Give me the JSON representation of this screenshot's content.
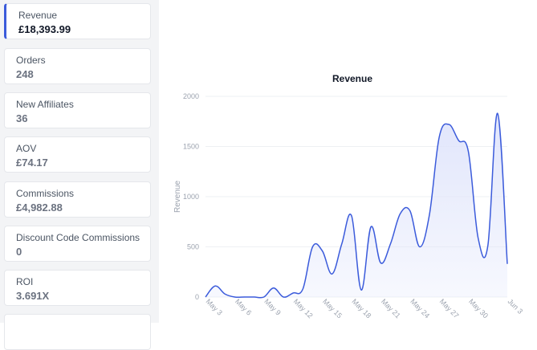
{
  "metrics": [
    {
      "label": "Revenue",
      "value": "£18,393.99",
      "active": true
    },
    {
      "label": "Orders",
      "value": "248",
      "active": false
    },
    {
      "label": "New Affiliates",
      "value": "36",
      "active": false
    },
    {
      "label": "AOV",
      "value": "£74.17",
      "active": false
    },
    {
      "label": "Commissions",
      "value": "£4,982.88",
      "active": false
    },
    {
      "label": "Discount Code Commissions",
      "value": "0",
      "active": false
    },
    {
      "label": "ROI",
      "value": "3.691X",
      "active": false
    }
  ],
  "colors": {
    "line": "#3b5bdb",
    "fill": "#dfe4fb",
    "grid": "#eef0f3",
    "tick": "#9ca3af"
  },
  "chart_data": {
    "type": "area",
    "title": "Revenue",
    "xlabel": "",
    "ylabel": "Revenue",
    "ylim": [
      0,
      2000
    ],
    "yticks": [
      0,
      500,
      1000,
      1500,
      2000
    ],
    "xticks": [
      {
        "label": "May 3",
        "index": 0
      },
      {
        "label": "May 6",
        "index": 3
      },
      {
        "label": "May 9",
        "index": 6
      },
      {
        "label": "May 12",
        "index": 9
      },
      {
        "label": "May 15",
        "index": 12
      },
      {
        "label": "May 18",
        "index": 15
      },
      {
        "label": "May 21",
        "index": 18
      },
      {
        "label": "May 24",
        "index": 21
      },
      {
        "label": "May 27",
        "index": 24
      },
      {
        "label": "May 30",
        "index": 27
      },
      {
        "label": "Jun 3",
        "index": 31
      }
    ],
    "values": [
      0,
      110,
      30,
      0,
      0,
      0,
      0,
      90,
      0,
      40,
      80,
      500,
      460,
      230,
      530,
      810,
      70,
      700,
      340,
      530,
      830,
      860,
      500,
      820,
      1590,
      1720,
      1560,
      1450,
      590,
      510,
      1830,
      330
    ]
  }
}
